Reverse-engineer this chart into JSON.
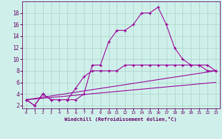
{
  "xlabel": "Windchill (Refroidissement éolien,°C)",
  "bg_color": "#cff0ea",
  "line_color": "#990099",
  "grid_color": "#aad8cc",
  "series1_x": [
    0,
    1,
    2,
    3,
    4,
    5,
    6,
    7,
    8,
    9,
    10,
    11,
    12,
    13,
    14,
    15,
    16,
    17,
    18,
    19,
    20,
    21,
    22,
    23
  ],
  "series1_y": [
    3,
    2,
    4,
    3,
    3,
    3,
    3,
    4,
    9,
    9,
    13,
    15,
    15,
    16,
    18,
    18,
    19,
    16,
    12,
    10,
    9,
    9,
    9,
    8
  ],
  "series2_x": [
    0,
    1,
    2,
    3,
    4,
    5,
    6,
    7,
    8,
    9,
    10,
    11,
    12,
    13,
    14,
    15,
    16,
    17,
    18,
    19,
    20,
    21,
    22,
    23
  ],
  "series2_y": [
    3,
    2,
    4,
    3,
    3,
    3,
    5,
    7,
    8,
    8,
    8,
    8,
    9,
    9,
    9,
    9,
    9,
    9,
    9,
    9,
    9,
    9,
    8,
    8
  ],
  "series3_x": [
    0,
    23
  ],
  "series3_y": [
    3,
    8
  ],
  "series4_x": [
    0,
    23
  ],
  "series4_y": [
    3,
    6
  ],
  "xlim": [
    -0.5,
    23.5
  ],
  "ylim": [
    1.5,
    20
  ],
  "yticks": [
    2,
    4,
    6,
    8,
    10,
    12,
    14,
    16,
    18
  ],
  "xticks": [
    0,
    1,
    2,
    3,
    4,
    5,
    6,
    7,
    8,
    9,
    10,
    11,
    12,
    13,
    14,
    15,
    16,
    17,
    18,
    19,
    20,
    21,
    22,
    23
  ]
}
